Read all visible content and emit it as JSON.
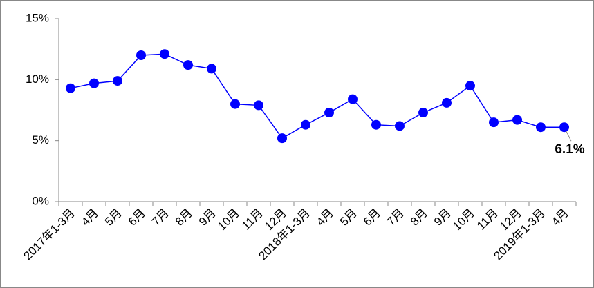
{
  "chart_data": {
    "type": "line",
    "categories": [
      "2017年1-3月",
      "4月",
      "5月",
      "6月",
      "7月",
      "8月",
      "9月",
      "10月",
      "11月",
      "12月",
      "2018年1-3月",
      "4月",
      "5月",
      "6月",
      "7月",
      "8月",
      "9月",
      "10月",
      "11月",
      "12月",
      "2019年1-3月",
      "4月"
    ],
    "series": [
      {
        "color": "#0000ff",
        "values": [
          9.3,
          9.7,
          9.9,
          12.0,
          12.1,
          11.2,
          10.9,
          8.0,
          7.9,
          5.2,
          6.3,
          7.3,
          8.4,
          6.3,
          6.2,
          7.3,
          8.1,
          9.5,
          6.5,
          6.7,
          6.1,
          6.1
        ],
        "value_labels": [
          null,
          null,
          null,
          null,
          null,
          null,
          null,
          null,
          null,
          null,
          null,
          null,
          null,
          null,
          null,
          null,
          null,
          null,
          null,
          null,
          null,
          "6.1%"
        ]
      }
    ],
    "ylim": [
      0,
      15
    ],
    "yticks": [
      {
        "value": 0,
        "label": "0%"
      },
      {
        "value": 5,
        "label": "5%"
      },
      {
        "value": 10,
        "label": "10%"
      },
      {
        "value": 15,
        "label": "15%"
      }
    ],
    "grid": false
  }
}
